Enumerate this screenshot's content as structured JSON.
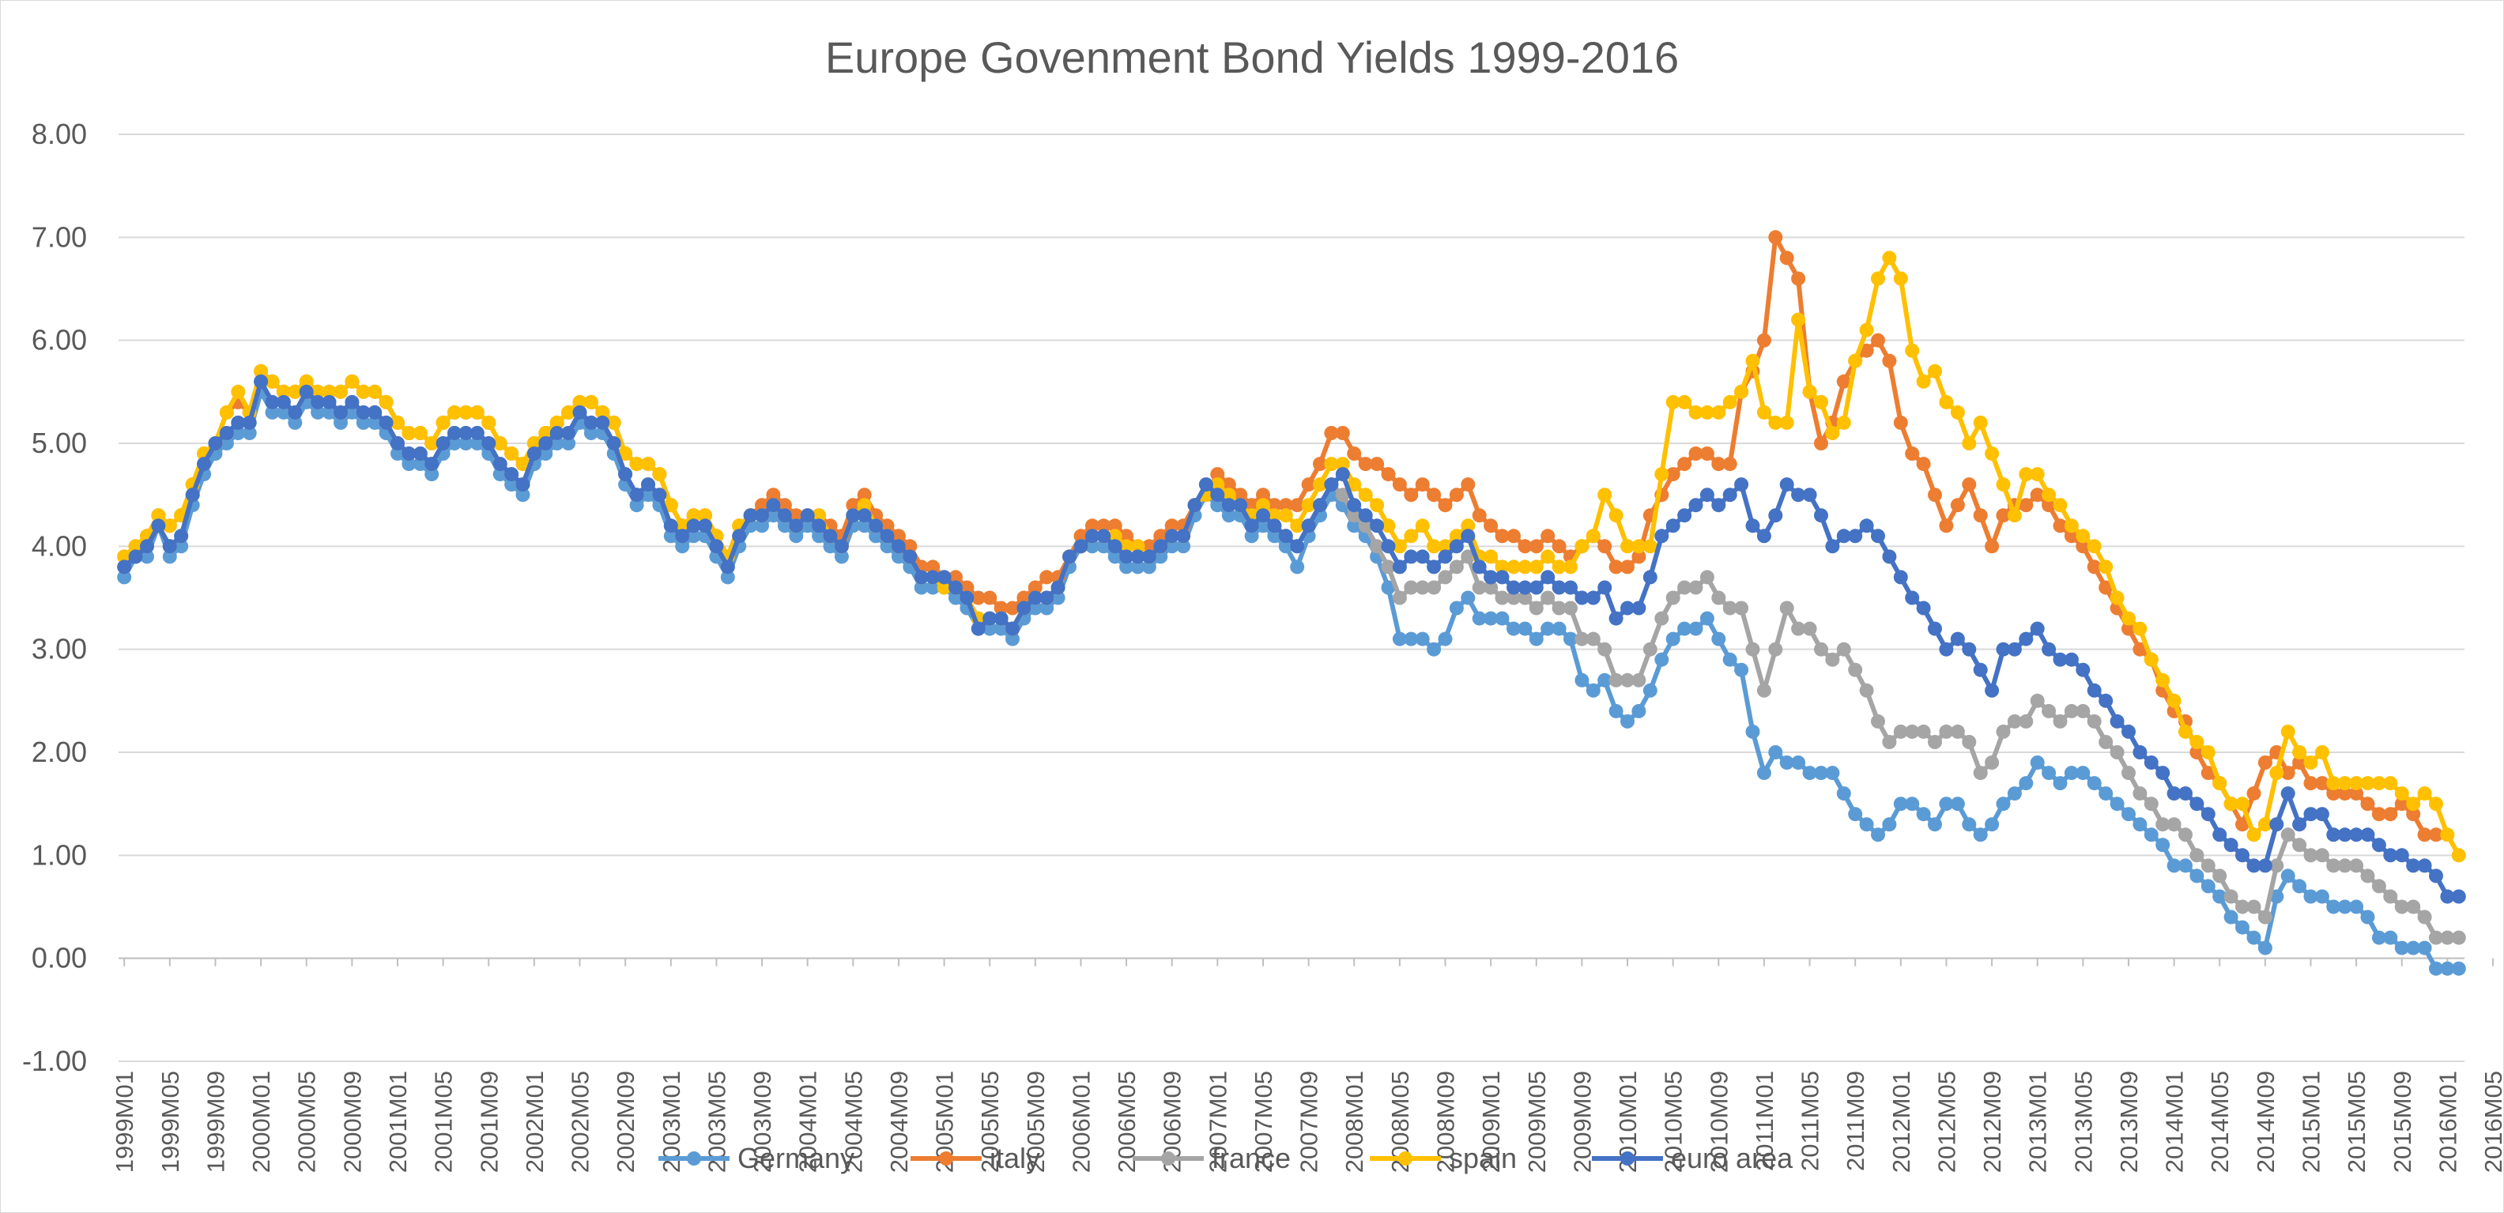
{
  "chart_data": {
    "type": "line",
    "title": "Europe Govenment Bond Yields 1999-2016",
    "xlabel": "",
    "ylabel": "",
    "ylim": [
      -1.0,
      8.0
    ],
    "y_ticks": [
      "-1.00",
      "0.00",
      "1.00",
      "2.00",
      "3.00",
      "4.00",
      "5.00",
      "6.00",
      "7.00",
      "8.00"
    ],
    "grid": true,
    "legend_position": "bottom",
    "x_tick_labels": [
      "1999M01",
      "1999M05",
      "1999M09",
      "2000M01",
      "2000M05",
      "2000M09",
      "2001M01",
      "2001M05",
      "2001M09",
      "2002M01",
      "2002M05",
      "2002M09",
      "2003M01",
      "2003M05",
      "2003M09",
      "2004M01",
      "2004M05",
      "2004M09",
      "2005M01",
      "2005M05",
      "2005M09",
      "2006M01",
      "2006M05",
      "2006M09",
      "2007M01",
      "2007M05",
      "2007M09",
      "2008M01",
      "2008M05",
      "2008M09",
      "2009M01",
      "2009M05",
      "2009M09",
      "2010M01",
      "2010M05",
      "2010M09",
      "2011M01",
      "2011M05",
      "2011M09",
      "2012M01",
      "2012M05",
      "2012M09",
      "2013M01",
      "2013M05",
      "2013M09",
      "2014M01",
      "2014M05",
      "2014M09",
      "2015M01",
      "2015M05",
      "2015M09",
      "2016M01",
      "2016M05"
    ],
    "x_start": "1999M01",
    "x_end": "2016M09",
    "series": [
      {
        "name": "Germany",
        "color": "#5B9BD5",
        "values": [
          3.7,
          3.9,
          3.9,
          4.2,
          3.9,
          4.0,
          4.4,
          4.7,
          4.9,
          5.0,
          5.1,
          5.1,
          5.5,
          5.3,
          5.3,
          5.2,
          5.4,
          5.3,
          5.3,
          5.2,
          5.3,
          5.2,
          5.2,
          5.1,
          4.9,
          4.8,
          4.8,
          4.7,
          4.9,
          5.0,
          5.0,
          5.0,
          4.9,
          4.7,
          4.6,
          4.5,
          4.8,
          4.9,
          5.0,
          5.0,
          5.2,
          5.1,
          5.1,
          4.9,
          4.6,
          4.4,
          4.5,
          4.4,
          4.1,
          4.0,
          4.1,
          4.1,
          3.9,
          3.7,
          4.0,
          4.2,
          4.2,
          4.3,
          4.2,
          4.1,
          4.2,
          4.1,
          4.0,
          3.9,
          4.2,
          4.2,
          4.1,
          4.0,
          3.9,
          3.8,
          3.6,
          3.6,
          3.6,
          3.5,
          3.4,
          3.2,
          3.2,
          3.2,
          3.1,
          3.3,
          3.4,
          3.4,
          3.5,
          3.8,
          4.0,
          4.0,
          4.0,
          3.9,
          3.8,
          3.8,
          3.8,
          3.9,
          4.0,
          4.0,
          4.3,
          4.5,
          4.4,
          4.3,
          4.3,
          4.1,
          4.2,
          4.1,
          4.0,
          3.8,
          4.1,
          4.3,
          4.5,
          4.4,
          4.2,
          4.1,
          3.9,
          3.6,
          3.1,
          3.1,
          3.1,
          3.0,
          3.1,
          3.4,
          3.5,
          3.3,
          3.3,
          3.3,
          3.2,
          3.2,
          3.1,
          3.2,
          3.2,
          3.1,
          2.7,
          2.6,
          2.7,
          2.4,
          2.3,
          2.4,
          2.6,
          2.9,
          3.1,
          3.2,
          3.2,
          3.3,
          3.1,
          2.9,
          2.8,
          2.2,
          1.8,
          2.0,
          1.9,
          1.9,
          1.8,
          1.8,
          1.8,
          1.6,
          1.4,
          1.3,
          1.2,
          1.3,
          1.5,
          1.5,
          1.4,
          1.3,
          1.5,
          1.5,
          1.3,
          1.2,
          1.3,
          1.5,
          1.6,
          1.7,
          1.9,
          1.8,
          1.7,
          1.8,
          1.8,
          1.7,
          1.6,
          1.5,
          1.4,
          1.3,
          1.2,
          1.1,
          0.9,
          0.9,
          0.8,
          0.7,
          0.6,
          0.4,
          0.3,
          0.2,
          0.1,
          0.6,
          0.8,
          0.7,
          0.6,
          0.6,
          0.5,
          0.5,
          0.5,
          0.4,
          0.2,
          0.2,
          0.1,
          0.1,
          0.1,
          -0.1,
          -0.1,
          -0.1
        ]
      },
      {
        "name": "italy",
        "color": "#ED7D31",
        "values": [
          3.9,
          4.0,
          4.1,
          4.3,
          4.2,
          4.3,
          4.6,
          4.9,
          5.0,
          5.3,
          5.4,
          5.3,
          5.7,
          5.6,
          5.5,
          5.5,
          5.6,
          5.5,
          5.5,
          5.5,
          5.6,
          5.5,
          5.5,
          5.4,
          5.2,
          5.1,
          5.1,
          5.0,
          5.2,
          5.3,
          5.3,
          5.3,
          5.2,
          5.0,
          4.9,
          4.8,
          5.0,
          5.1,
          5.2,
          5.3,
          5.4,
          5.4,
          5.3,
          5.2,
          4.9,
          4.8,
          4.8,
          4.7,
          4.4,
          4.2,
          4.3,
          4.3,
          4.1,
          3.9,
          4.2,
          4.3,
          4.4,
          4.5,
          4.4,
          4.3,
          4.3,
          4.3,
          4.2,
          4.1,
          4.4,
          4.5,
          4.3,
          4.2,
          4.1,
          4.0,
          3.8,
          3.8,
          3.7,
          3.7,
          3.6,
          3.5,
          3.5,
          3.4,
          3.4,
          3.5,
          3.6,
          3.7,
          3.7,
          3.9,
          4.1,
          4.2,
          4.2,
          4.2,
          4.1,
          4.0,
          4.0,
          4.1,
          4.2,
          4.2,
          4.4,
          4.5,
          4.7,
          4.6,
          4.5,
          4.4,
          4.5,
          4.4,
          4.4,
          4.4,
          4.6,
          4.8,
          5.1,
          5.1,
          4.9,
          4.8,
          4.8,
          4.7,
          4.6,
          4.5,
          4.6,
          4.5,
          4.4,
          4.5,
          4.6,
          4.3,
          4.2,
          4.1,
          4.1,
          4.0,
          4.0,
          4.1,
          4.0,
          3.9,
          4.0,
          4.1,
          4.0,
          3.8,
          3.8,
          3.9,
          4.3,
          4.5,
          4.7,
          4.8,
          4.9,
          4.9,
          4.8,
          4.8,
          5.5,
          5.7,
          6.0,
          7.0,
          6.8,
          6.6,
          5.5,
          5.0,
          5.2,
          5.6,
          5.8,
          5.9,
          6.0,
          5.8,
          5.2,
          4.9,
          4.8,
          4.5,
          4.2,
          4.4,
          4.6,
          4.3,
          4.0,
          4.3,
          4.4,
          4.4,
          4.5,
          4.4,
          4.2,
          4.1,
          4.0,
          3.8,
          3.6,
          3.4,
          3.2,
          3.0,
          2.9,
          2.6,
          2.4,
          2.3,
          2.0,
          1.8,
          1.7,
          1.5,
          1.3,
          1.6,
          1.9,
          2.0,
          1.8,
          1.9,
          1.7,
          1.7,
          1.6,
          1.6,
          1.6,
          1.5,
          1.4,
          1.4,
          1.5,
          1.4,
          1.2,
          1.2
        ]
      },
      {
        "name": "france",
        "color": "#A5A5A5",
        "values": [
          3.8,
          3.9,
          4.0,
          4.2,
          4.0,
          4.1,
          4.5,
          4.8,
          5.0,
          5.1,
          5.2,
          5.2,
          5.6,
          5.4,
          5.4,
          5.3,
          5.5,
          5.4,
          5.4,
          5.3,
          5.4,
          5.3,
          5.3,
          5.2,
          5.0,
          4.9,
          4.9,
          4.8,
          5.0,
          5.1,
          5.1,
          5.1,
          5.0,
          4.8,
          4.7,
          4.6,
          4.9,
          5.0,
          5.1,
          5.1,
          5.3,
          5.2,
          5.2,
          5.0,
          4.7,
          4.5,
          4.6,
          4.5,
          4.2,
          4.1,
          4.2,
          4.2,
          4.0,
          3.8,
          4.1,
          4.3,
          4.3,
          4.4,
          4.3,
          4.2,
          4.3,
          4.2,
          4.1,
          4.0,
          4.3,
          4.3,
          4.2,
          4.1,
          4.0,
          3.9,
          3.7,
          3.7,
          3.7,
          3.6,
          3.5,
          3.2,
          3.3,
          3.3,
          3.2,
          3.4,
          3.5,
          3.5,
          3.6,
          3.9,
          4.0,
          4.1,
          4.1,
          4.0,
          3.9,
          3.9,
          3.9,
          4.0,
          4.1,
          4.1,
          4.4,
          4.6,
          4.5,
          4.4,
          4.4,
          4.2,
          4.3,
          4.2,
          4.1,
          4.0,
          4.2,
          4.4,
          4.6,
          4.5,
          4.3,
          4.2,
          4.0,
          3.8,
          3.5,
          3.6,
          3.6,
          3.6,
          3.7,
          3.8,
          3.9,
          3.6,
          3.6,
          3.5,
          3.5,
          3.5,
          3.4,
          3.5,
          3.4,
          3.4,
          3.1,
          3.1,
          3.0,
          2.7,
          2.7,
          2.7,
          3.0,
          3.3,
          3.5,
          3.6,
          3.6,
          3.7,
          3.5,
          3.4,
          3.4,
          3.0,
          2.6,
          3.0,
          3.4,
          3.2,
          3.2,
          3.0,
          2.9,
          3.0,
          2.8,
          2.6,
          2.3,
          2.1,
          2.2,
          2.2,
          2.2,
          2.1,
          2.2,
          2.2,
          2.1,
          1.8,
          1.9,
          2.2,
          2.3,
          2.3,
          2.5,
          2.4,
          2.3,
          2.4,
          2.4,
          2.3,
          2.1,
          2.0,
          1.8,
          1.6,
          1.5,
          1.3,
          1.3,
          1.2,
          1.0,
          0.9,
          0.8,
          0.6,
          0.5,
          0.5,
          0.4,
          0.9,
          1.2,
          1.1,
          1.0,
          1.0,
          0.9,
          0.9,
          0.9,
          0.8,
          0.7,
          0.6,
          0.5,
          0.5,
          0.4,
          0.2,
          0.2,
          0.2
        ]
      },
      {
        "name": "spain",
        "color": "#FFC000",
        "values": [
          3.9,
          4.0,
          4.1,
          4.3,
          4.2,
          4.3,
          4.6,
          4.9,
          5.0,
          5.3,
          5.5,
          5.3,
          5.7,
          5.6,
          5.5,
          5.5,
          5.6,
          5.5,
          5.5,
          5.5,
          5.6,
          5.5,
          5.5,
          5.4,
          5.2,
          5.1,
          5.1,
          5.0,
          5.2,
          5.3,
          5.3,
          5.3,
          5.2,
          5.0,
          4.9,
          4.8,
          5.0,
          5.1,
          5.2,
          5.3,
          5.4,
          5.4,
          5.3,
          5.2,
          4.9,
          4.8,
          4.8,
          4.7,
          4.4,
          4.2,
          4.3,
          4.3,
          4.1,
          3.9,
          4.2,
          4.3,
          4.3,
          4.4,
          4.3,
          4.2,
          4.3,
          4.3,
          4.1,
          4.0,
          4.3,
          4.4,
          4.2,
          4.1,
          4.0,
          3.9,
          3.7,
          3.7,
          3.6,
          3.6,
          3.5,
          3.3,
          3.3,
          3.3,
          3.2,
          3.4,
          3.5,
          3.5,
          3.6,
          3.9,
          4.0,
          4.1,
          4.1,
          4.1,
          4.0,
          4.0,
          3.9,
          4.0,
          4.1,
          4.1,
          4.4,
          4.5,
          4.6,
          4.5,
          4.4,
          4.3,
          4.4,
          4.3,
          4.3,
          4.2,
          4.4,
          4.6,
          4.8,
          4.8,
          4.6,
          4.5,
          4.4,
          4.2,
          4.0,
          4.1,
          4.2,
          4.0,
          4.0,
          4.1,
          4.2,
          3.9,
          3.9,
          3.8,
          3.8,
          3.8,
          3.8,
          3.9,
          3.8,
          3.8,
          4.0,
          4.1,
          4.5,
          4.3,
          4.0,
          4.0,
          4.0,
          4.7,
          5.4,
          5.4,
          5.3,
          5.3,
          5.3,
          5.4,
          5.5,
          5.8,
          5.3,
          5.2,
          5.2,
          6.2,
          5.5,
          5.4,
          5.1,
          5.2,
          5.8,
          6.1,
          6.6,
          6.8,
          6.6,
          5.9,
          5.6,
          5.7,
          5.4,
          5.3,
          5.0,
          5.2,
          4.9,
          4.6,
          4.3,
          4.7,
          4.7,
          4.5,
          4.4,
          4.2,
          4.1,
          4.0,
          3.8,
          3.5,
          3.3,
          3.2,
          2.9,
          2.7,
          2.5,
          2.2,
          2.1,
          2.0,
          1.7,
          1.5,
          1.5,
          1.2,
          1.3,
          1.8,
          2.2,
          2.0,
          1.9,
          2.0,
          1.7,
          1.7,
          1.7,
          1.7,
          1.7,
          1.7,
          1.6,
          1.5,
          1.6,
          1.5,
          1.2,
          1.0
        ]
      },
      {
        "name": "euro area",
        "color": "#4472C4",
        "values": [
          3.8,
          3.9,
          4.0,
          4.2,
          4.0,
          4.1,
          4.5,
          4.8,
          5.0,
          5.1,
          5.2,
          5.2,
          5.6,
          5.4,
          5.4,
          5.3,
          5.5,
          5.4,
          5.4,
          5.3,
          5.4,
          5.3,
          5.3,
          5.2,
          5.0,
          4.9,
          4.9,
          4.8,
          5.0,
          5.1,
          5.1,
          5.1,
          5.0,
          4.8,
          4.7,
          4.6,
          4.9,
          5.0,
          5.1,
          5.1,
          5.3,
          5.2,
          5.2,
          5.0,
          4.7,
          4.5,
          4.6,
          4.5,
          4.2,
          4.1,
          4.2,
          4.2,
          4.0,
          3.8,
          4.1,
          4.3,
          4.3,
          4.4,
          4.3,
          4.2,
          4.3,
          4.2,
          4.1,
          4.0,
          4.3,
          4.3,
          4.2,
          4.1,
          4.0,
          3.9,
          3.7,
          3.7,
          3.7,
          3.6,
          3.5,
          3.2,
          3.3,
          3.3,
          3.2,
          3.4,
          3.5,
          3.5,
          3.6,
          3.9,
          4.0,
          4.1,
          4.1,
          4.0,
          3.9,
          3.9,
          3.9,
          4.0,
          4.1,
          4.1,
          4.4,
          4.6,
          4.5,
          4.4,
          4.4,
          4.2,
          4.3,
          4.2,
          4.1,
          4.0,
          4.2,
          4.4,
          4.6,
          4.7,
          4.4,
          4.3,
          4.2,
          4.0,
          3.8,
          3.9,
          3.9,
          3.8,
          3.9,
          4.0,
          4.1,
          3.8,
          3.7,
          3.7,
          3.6,
          3.6,
          3.6,
          3.7,
          3.6,
          3.6,
          3.5,
          3.5,
          3.6,
          3.3,
          3.4,
          3.4,
          3.7,
          4.1,
          4.2,
          4.3,
          4.4,
          4.5,
          4.4,
          4.5,
          4.6,
          4.2,
          4.1,
          4.3,
          4.6,
          4.5,
          4.5,
          4.3,
          4.0,
          4.1,
          4.1,
          4.2,
          4.1,
          3.9,
          3.7,
          3.5,
          3.4,
          3.2,
          3.0,
          3.1,
          3.0,
          2.8,
          2.6,
          3.0,
          3.0,
          3.1,
          3.2,
          3.0,
          2.9,
          2.9,
          2.8,
          2.6,
          2.5,
          2.3,
          2.2,
          2.0,
          1.9,
          1.8,
          1.6,
          1.6,
          1.5,
          1.4,
          1.2,
          1.1,
          1.0,
          0.9,
          0.9,
          1.3,
          1.6,
          1.3,
          1.4,
          1.4,
          1.2,
          1.2,
          1.2,
          1.2,
          1.1,
          1.0,
          1.0,
          0.9,
          0.9,
          0.8,
          0.6,
          0.6
        ]
      }
    ]
  }
}
